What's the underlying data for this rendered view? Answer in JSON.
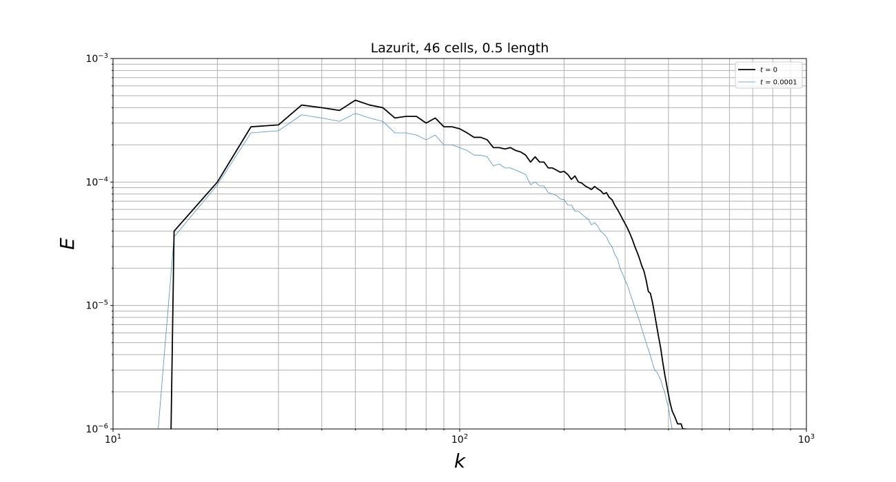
{
  "chart_data": {
    "type": "line",
    "title": "Lazurit, 46 cells, 0.5 length",
    "xlabel": "k",
    "ylabel": "E",
    "xscale": "log",
    "yscale": "log",
    "xlim": [
      10,
      1000
    ],
    "ylim": [
      1e-06,
      0.001
    ],
    "grid": "major and minor",
    "legend_position": "top-right",
    "x_tick_labels": [
      {
        "value": 10,
        "base": "10",
        "exp": "1"
      },
      {
        "value": 100,
        "base": "10",
        "exp": "2"
      },
      {
        "value": 1000,
        "base": "10",
        "exp": "3"
      }
    ],
    "y_tick_labels": [
      {
        "value": 1e-06,
        "base": "10",
        "exp": "−6"
      },
      {
        "value": 1e-05,
        "base": "10",
        "exp": "−5"
      },
      {
        "value": 0.0001,
        "base": "10",
        "exp": "−4"
      },
      {
        "value": 0.001,
        "base": "10",
        "exp": "−3"
      }
    ],
    "series": [
      {
        "legend_var": "t",
        "legend_value": " = 0",
        "color": "#000000",
        "x": [
          14.7,
          15,
          20,
          25,
          30,
          35,
          40,
          45,
          50,
          55,
          60,
          65,
          70,
          75,
          80,
          85,
          90,
          95,
          100,
          105,
          110,
          115,
          120,
          125,
          130,
          135,
          140,
          145,
          150,
          155,
          160,
          165,
          170,
          175,
          180,
          185,
          190,
          195,
          200,
          205,
          210,
          215,
          220,
          225,
          230,
          235,
          240,
          245,
          250,
          255,
          260,
          265,
          270,
          275,
          280,
          285,
          290,
          295,
          300,
          305,
          310,
          315,
          320,
          325,
          330,
          335,
          340,
          345,
          350,
          355,
          360,
          365,
          370,
          375,
          380,
          385,
          390,
          395,
          400,
          405,
          410,
          415,
          420,
          425,
          430,
          435,
          440,
          445,
          450
        ],
        "y": [
          1e-06,
          4e-05,
          0.0001,
          0.00028,
          0.00029,
          0.00042,
          0.0004,
          0.00038,
          0.00046,
          0.00042,
          0.0004,
          0.00033,
          0.00034,
          0.00034,
          0.0003,
          0.00033,
          0.00028,
          0.00028,
          0.00027,
          0.00025,
          0.00023,
          0.00023,
          0.00022,
          0.00019,
          0.00019,
          0.000185,
          0.00019,
          0.00018,
          0.000175,
          0.000165,
          0.000145,
          0.00016,
          0.000145,
          0.000145,
          0.00013,
          0.00013,
          0.000125,
          0.00012,
          0.000122,
          0.000115,
          0.000105,
          0.000112,
          0.0001,
          9.8e-05,
          9.3e-05,
          9e-05,
          8.7e-05,
          9.2e-05,
          8.8e-05,
          8.5e-05,
          8e-05,
          8.2e-05,
          7.5e-05,
          7.2e-05,
          6.5e-05,
          6e-05,
          5.5e-05,
          5e-05,
          4.6e-05,
          4.2e-05,
          3.8e-05,
          3.4e-05,
          3e-05,
          2.7e-05,
          2.4e-05,
          2.1e-05,
          1.9e-05,
          1.6e-05,
          1.3e-05,
          1.25e-05,
          1.05e-05,
          8.5e-06,
          6.8e-06,
          5.5e-06,
          4.5e-06,
          3.5e-06,
          2.8e-06,
          2.3e-06,
          1.9e-06,
          1.6e-06,
          1.4e-06,
          1.3e-06,
          1.2e-06,
          1.1e-06,
          1.1e-06,
          1.1e-06,
          1e-06,
          1e-06,
          1e-06
        ]
      },
      {
        "legend_var": "t",
        "legend_value": " = 0.0001",
        "color": "#4a8fc7",
        "x": [
          13.5,
          14,
          15,
          20,
          25,
          30,
          35,
          40,
          45,
          50,
          55,
          60,
          65,
          70,
          75,
          80,
          85,
          90,
          95,
          100,
          105,
          110,
          115,
          120,
          125,
          130,
          135,
          140,
          145,
          150,
          155,
          160,
          165,
          170,
          175,
          180,
          185,
          190,
          195,
          200,
          205,
          210,
          215,
          220,
          225,
          230,
          235,
          240,
          245,
          250,
          255,
          260,
          265,
          270,
          275,
          280,
          285,
          290,
          295,
          300,
          305,
          310,
          315,
          320,
          325,
          330,
          335,
          340,
          345,
          350,
          355,
          360,
          365,
          370,
          375,
          380,
          385,
          390,
          395,
          400,
          405,
          410
        ],
        "y": [
          1e-06,
          3.5e-06,
          3.6e-05,
          9.5e-05,
          0.00025,
          0.00026,
          0.00035,
          0.00033,
          0.00031,
          0.00036,
          0.00033,
          0.00031,
          0.00025,
          0.00025,
          0.00024,
          0.00022,
          0.00024,
          0.0002,
          0.0002,
          0.00019,
          0.00018,
          0.000165,
          0.000165,
          0.00016,
          0.000135,
          0.00014,
          0.00013,
          0.00013,
          0.000125,
          0.00012,
          0.000115,
          9.5e-05,
          0.0001,
          9.3e-05,
          9.3e-05,
          8.2e-05,
          8e-05,
          7.8e-05,
          7.3e-05,
          7.2e-05,
          6.5e-05,
          6.5e-05,
          5.8e-05,
          5.8e-05,
          5.5e-05,
          5.2e-05,
          5e-05,
          4.5e-05,
          4.7e-05,
          4.4e-05,
          4e-05,
          3.8e-05,
          3.6e-05,
          3.2e-05,
          3e-05,
          2.6e-05,
          2.4e-05,
          2e-05,
          1.8e-05,
          1.6e-05,
          1.45e-05,
          1.25e-05,
          1.1e-05,
          9.5e-06,
          8.5e-06,
          7.5e-06,
          6.5e-06,
          5.7e-06,
          5e-06,
          4.4e-06,
          3.9e-06,
          3.4e-06,
          3e-06,
          2.9e-06,
          2.7e-06,
          2.5e-06,
          2.2e-06,
          2e-06,
          1.7e-06,
          1.5e-06,
          1.2e-06,
          1e-06
        ]
      }
    ]
  }
}
